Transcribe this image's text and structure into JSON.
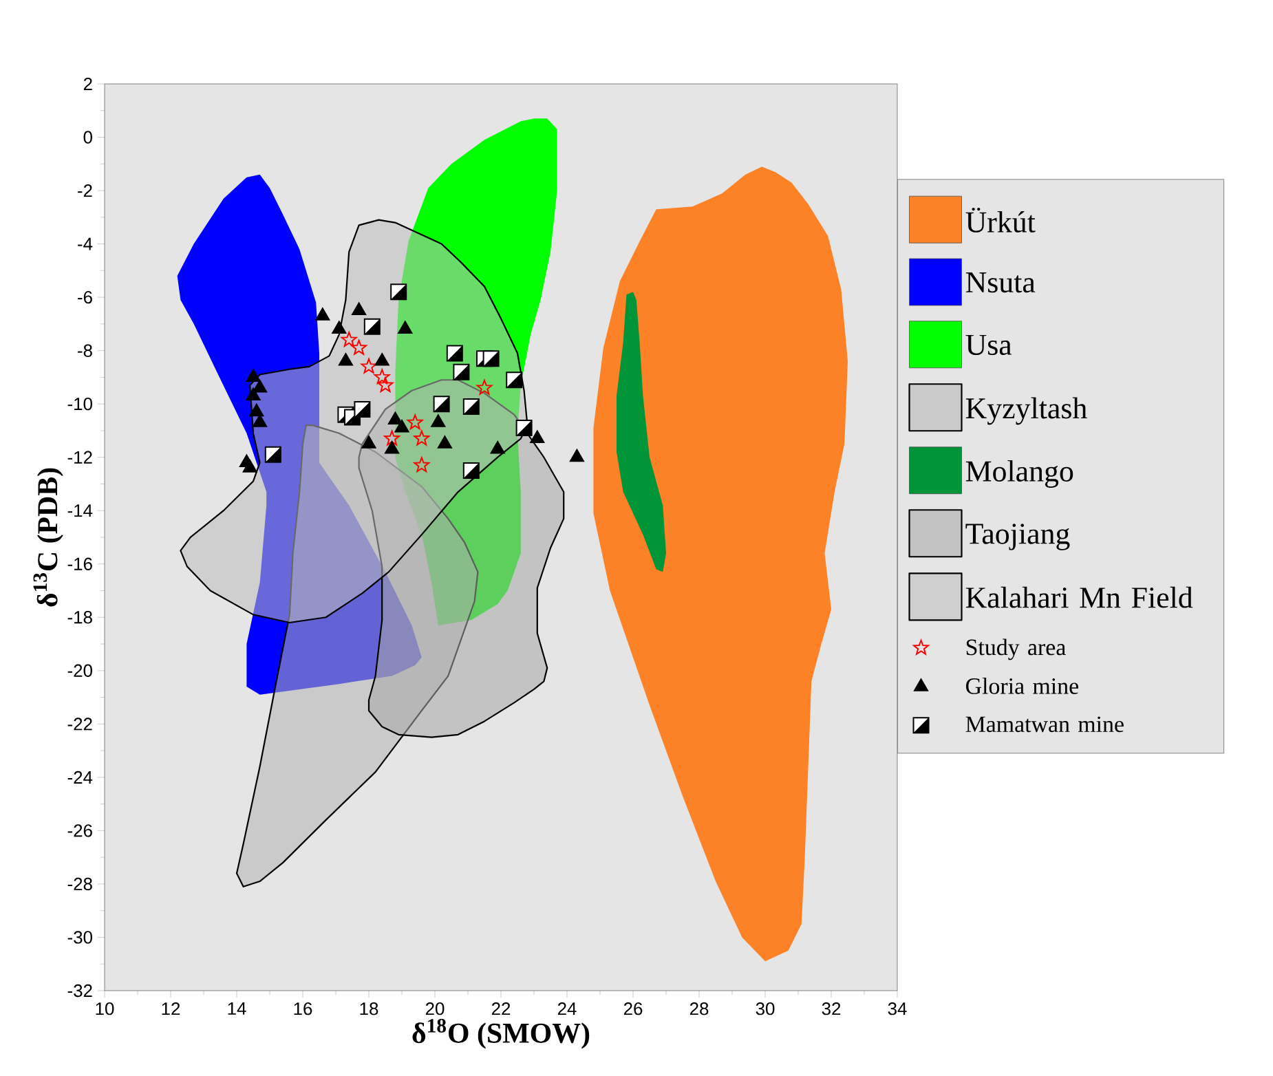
{
  "chart_data": {
    "type": "scatter",
    "xlabel": "δ$^{18}$O (SMOW)",
    "ylabel": "δ$^{13}$C (PDB)",
    "xlim": [
      10,
      34
    ],
    "ylim": [
      -32,
      2
    ],
    "xticks": [
      10,
      12,
      14,
      16,
      18,
      20,
      22,
      24,
      26,
      28,
      30,
      32,
      34
    ],
    "yticks": [
      -32,
      -30,
      -28,
      -26,
      -24,
      -22,
      -20,
      -18,
      -16,
      -14,
      -12,
      -10,
      -8,
      -6,
      -4,
      -2,
      0,
      2
    ],
    "legend": "right",
    "series": [
      {
        "name": "Ürkút",
        "type": "area",
        "color": "#fd8126",
        "x": [
          26.7,
          27.8,
          28.7,
          29.4,
          29.9,
          30.3,
          30.8,
          31.3,
          31.9,
          32.3,
          32.5,
          32.4,
          32.1,
          31.8,
          32.0,
          31.7,
          31.4,
          31.2,
          31.1,
          30.7,
          30.0,
          29.3,
          28.5,
          27.5,
          26.5,
          25.3,
          24.8,
          24.8,
          25.1,
          25.6,
          26.2
        ],
        "values": [
          -2.7,
          -2.6,
          -2.1,
          -1.4,
          -1.1,
          -1.3,
          -1.7,
          -2.5,
          -3.7,
          -5.7,
          -8.4,
          -11.5,
          -13.3,
          -15.6,
          -17.7,
          -19.0,
          -20.4,
          -27.0,
          -29.5,
          -30.5,
          -30.9,
          -30.0,
          -27.9,
          -24.7,
          -21.3,
          -17.0,
          -14.1,
          -10.9,
          -7.9,
          -5.4,
          -3.9
        ]
      },
      {
        "name": "Nsuta",
        "type": "area",
        "color": "#0000ff",
        "x": [
          12.2,
          12.7,
          13.6,
          14.3,
          14.7,
          15.0,
          15.4,
          15.9,
          16.4,
          16.5,
          16.5,
          17.4,
          18.5,
          19.3,
          19.6,
          19.4,
          18.7,
          17.1,
          14.7,
          14.3,
          14.3,
          14.7,
          14.9,
          14.9,
          14.3,
          13.4,
          12.7,
          12.3
        ],
        "values": [
          -5.2,
          -4.0,
          -2.3,
          -1.5,
          -1.4,
          -1.9,
          -2.9,
          -4.2,
          -6.2,
          -8.1,
          -12.2,
          -13.8,
          -16.3,
          -18.3,
          -19.5,
          -19.8,
          -20.2,
          -20.5,
          -20.9,
          -20.6,
          -19.0,
          -16.7,
          -13.8,
          -13.3,
          -11.1,
          -8.8,
          -7.0,
          -6.1
        ]
      },
      {
        "name": "Usa",
        "type": "area",
        "color": "#00ff00",
        "x": [
          19.8,
          20.5,
          21.5,
          22.6,
          23.0,
          23.4,
          23.7,
          23.7,
          23.5,
          23.2,
          22.9,
          22.6,
          22.5,
          22.6,
          22.6,
          22.2,
          21.9,
          21.1,
          20.1,
          19.9,
          19.6,
          19.1,
          18.8,
          18.8,
          18.9,
          19.2,
          19.5
        ],
        "values": [
          -1.9,
          -1.0,
          -0.1,
          0.6,
          0.7,
          0.7,
          0.3,
          -2.0,
          -4.3,
          -6.1,
          -7.4,
          -9.3,
          -11.1,
          -13.3,
          -15.6,
          -17.0,
          -17.5,
          -18.1,
          -18.3,
          -16.7,
          -14.9,
          -13.3,
          -12.0,
          -8.8,
          -6.1,
          -3.9,
          -2.9
        ]
      },
      {
        "name": "Kyzyltash",
        "type": "area",
        "color": "#b4b4b4",
        "line_style": "solid",
        "x": [
          16.1,
          16.3,
          17.1,
          18.2,
          19.6,
          20.4,
          20.9,
          21.3,
          21.2,
          20.8,
          20.4,
          19.6,
          18.2,
          16.7,
          15.4,
          14.7,
          14.2,
          14.0,
          14.2,
          14.7,
          15.2,
          15.6,
          15.7,
          15.9,
          16.0
        ],
        "values": [
          -10.8,
          -10.8,
          -11.1,
          -11.8,
          -13.1,
          -14.3,
          -15.2,
          -16.3,
          -17.4,
          -18.8,
          -20.2,
          -21.5,
          -23.8,
          -25.6,
          -27.2,
          -27.9,
          -28.1,
          -27.6,
          -26.5,
          -23.6,
          -20.4,
          -17.9,
          -15.6,
          -13.3,
          -11.5
        ]
      },
      {
        "name": "Molango",
        "type": "area",
        "color": "#009538",
        "x": [
          25.8,
          26.0,
          26.1,
          26.2,
          26.3,
          26.5,
          26.9,
          27.0,
          26.9,
          26.7,
          26.3,
          25.7,
          25.5,
          25.5,
          25.7
        ],
        "values": [
          -5.9,
          -5.8,
          -6.1,
          -7.7,
          -9.7,
          -12.0,
          -13.8,
          -15.6,
          -16.3,
          -16.2,
          -14.9,
          -13.3,
          -11.8,
          -9.7,
          -7.7
        ]
      },
      {
        "name": "Taojiang",
        "type": "area",
        "color": "#a8a8a8",
        "line_style": "solid",
        "x": [
          17.8,
          18.5,
          19.3,
          20.2,
          20.7,
          21.5,
          22.4,
          23.3,
          23.9,
          23.9,
          23.5,
          23.1,
          23.1,
          23.4,
          23.3,
          23.0,
          22.4,
          21.5,
          20.7,
          19.9,
          18.9,
          18.4,
          18.0,
          18.0,
          18.2,
          18.4,
          18.4,
          18.1,
          17.7,
          17.7
        ],
        "values": [
          -11.5,
          -10.2,
          -9.5,
          -9.1,
          -9.1,
          -9.6,
          -10.4,
          -12.0,
          -13.3,
          -14.3,
          -15.4,
          -16.9,
          -18.6,
          -19.9,
          -20.4,
          -20.7,
          -21.2,
          -21.9,
          -22.4,
          -22.5,
          -22.4,
          -22.1,
          -21.5,
          -21.1,
          -20.2,
          -18.1,
          -16.1,
          -14.0,
          -12.4,
          -12.0
        ]
      },
      {
        "name": "Kalahari Mn Field",
        "type": "area",
        "color": "#bebebe",
        "line_style": "solid",
        "x": [
          17.7,
          18.3,
          18.8,
          19.5,
          20.2,
          20.8,
          21.5,
          22.0,
          22.5,
          22.7,
          22.8,
          22.6,
          21.9,
          20.7,
          19.6,
          18.6,
          17.8,
          16.7,
          15.6,
          14.5,
          13.2,
          12.5,
          12.3,
          12.6,
          13.6,
          14.5,
          14.7,
          14.5,
          14.4,
          14.7,
          15.6,
          16.2,
          16.8,
          17.1,
          17.3,
          17.4
        ],
        "values": [
          -3.3,
          -3.1,
          -3.2,
          -3.6,
          -4.0,
          -4.7,
          -5.6,
          -6.8,
          -8.1,
          -9.5,
          -10.8,
          -11.3,
          -12.0,
          -13.3,
          -14.9,
          -16.3,
          -17.1,
          -18.0,
          -18.2,
          -17.9,
          -17.0,
          -16.1,
          -15.5,
          -15.0,
          -14.0,
          -12.9,
          -12.2,
          -11.1,
          -9.3,
          -8.9,
          -8.7,
          -8.6,
          -8.2,
          -7.4,
          -6.1,
          -4.3
        ]
      },
      {
        "name": "Study area",
        "marker": "star",
        "color": "#ff0000",
        "x": [
          17.4,
          17.7,
          18.0,
          18.4,
          18.5,
          21.5,
          19.4,
          19.6,
          18.7,
          19.6
        ],
        "values": [
          -7.6,
          -7.9,
          -8.6,
          -9.0,
          -9.3,
          -9.4,
          -10.7,
          -11.3,
          -11.3,
          -12.3
        ]
      },
      {
        "name": "Gloria  mine",
        "marker": "triangle",
        "color": "#000000",
        "x": [
          16.6,
          17.1,
          17.7,
          19.1,
          17.3,
          18.4,
          14.5,
          14.7,
          14.5,
          14.6,
          14.7,
          14.3,
          14.4,
          18.8,
          19.0,
          20.1,
          18.0,
          18.7,
          20.3,
          21.9,
          23.1,
          24.3
        ],
        "values": [
          -6.7,
          -7.2,
          -6.5,
          -7.2,
          -8.4,
          -8.4,
          -9.0,
          -9.4,
          -9.7,
          -10.3,
          -10.7,
          -12.2,
          -12.4,
          -10.6,
          -10.9,
          -10.7,
          -11.5,
          -11.7,
          -11.5,
          -11.7,
          -11.3,
          -12.0
        ]
      },
      {
        "name": "Mamatwan mine",
        "marker": "square",
        "color": "#000000",
        "x": [
          18.9,
          18.1,
          20.6,
          21.5,
          21.7,
          20.8,
          22.4,
          20.2,
          21.1,
          17.3,
          17.5,
          17.8,
          22.7,
          15.1,
          21.1
        ],
        "values": [
          -5.8,
          -7.1,
          -8.1,
          -8.3,
          -8.3,
          -8.8,
          -9.1,
          -10.0,
          -10.1,
          -10.4,
          -10.5,
          -10.2,
          -10.9,
          -11.9,
          -12.5
        ]
      }
    ]
  }
}
